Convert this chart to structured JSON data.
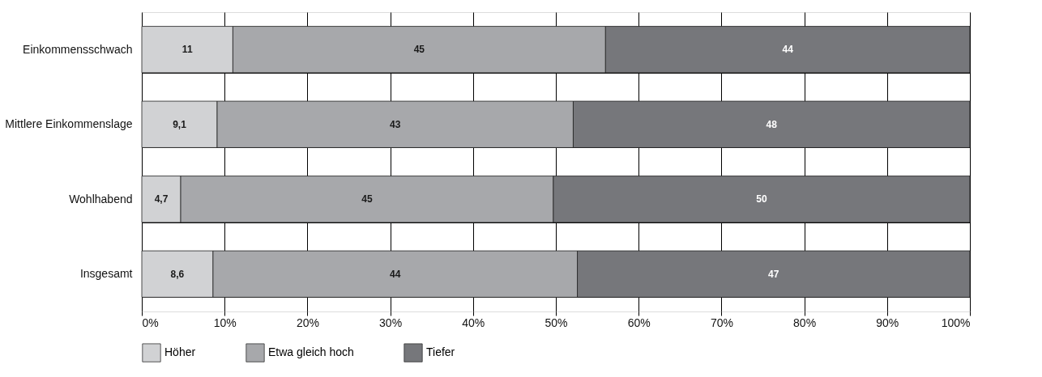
{
  "chart_data": {
    "type": "bar",
    "orientation": "horizontal",
    "stacked": true,
    "categories": [
      "Einkommensschwach",
      "Mittlere Einkommenslage",
      "Wohlhabend",
      "Insgesamt"
    ],
    "series": [
      {
        "name": "Höher",
        "color": "#d1d2d4",
        "values": [
          11,
          9.1,
          4.7,
          8.6
        ],
        "value_labels": [
          "11",
          "9,1",
          "4,7",
          "8,6"
        ]
      },
      {
        "name": "Etwa gleich hoch",
        "color": "#a7a8ab",
        "values": [
          45,
          43,
          45,
          44
        ],
        "value_labels": [
          "45",
          "43",
          "45",
          "44"
        ]
      },
      {
        "name": "Tiefer",
        "color": "#76777b",
        "values": [
          44,
          47.9,
          50.3,
          47.4
        ],
        "value_labels": [
          "44",
          "48",
          "50",
          "47"
        ]
      }
    ],
    "xlim": [
      0,
      100
    ],
    "xticks": [
      {
        "value": 0,
        "label": "0%"
      },
      {
        "value": 10,
        "label": "10%"
      },
      {
        "value": 20,
        "label": "20%"
      },
      {
        "value": 30,
        "label": "30%"
      },
      {
        "value": 40,
        "label": "40%"
      },
      {
        "value": 50,
        "label": "50%"
      },
      {
        "value": 60,
        "label": "60%"
      },
      {
        "value": 70,
        "label": "70%"
      },
      {
        "value": 80,
        "label": "80%"
      },
      {
        "value": 90,
        "label": "90%"
      },
      {
        "value": 100,
        "label": "100%"
      }
    ],
    "grid": true,
    "legend": "bottom"
  }
}
